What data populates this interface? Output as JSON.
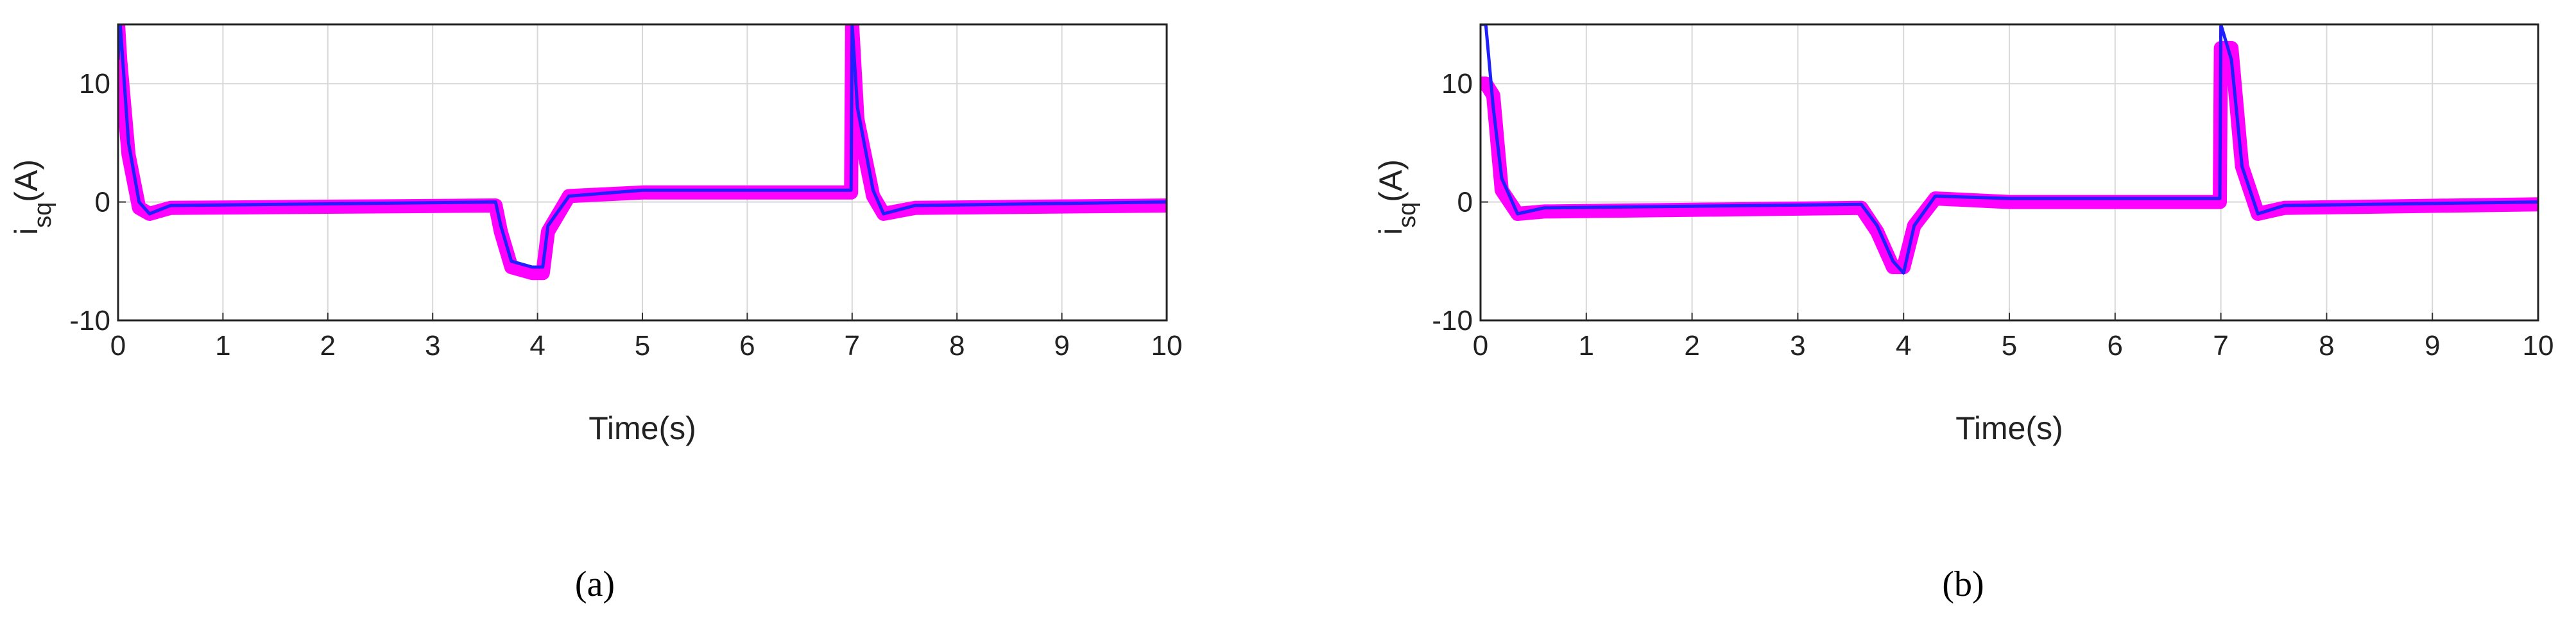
{
  "chart_data": [
    {
      "type": "line",
      "caption": "(a)",
      "x_label": "Time(s)",
      "y_label": "i",
      "y_label_sub": "sq",
      "y_label_unit": "(A)",
      "xlim": [
        0,
        10
      ],
      "ylim": [
        -10,
        15
      ],
      "xticks": [
        0,
        1,
        2,
        3,
        4,
        5,
        6,
        7,
        8,
        9,
        10
      ],
      "yticks": [
        -10,
        0,
        10
      ],
      "grid": true,
      "x": [
        0,
        0.02,
        0.1,
        0.2,
        0.3,
        0.5,
        3.6,
        3.65,
        3.75,
        3.95,
        4.05,
        4.1,
        4.3,
        5,
        6.99,
        7.0,
        7.05,
        7.2,
        7.3,
        7.6,
        10
      ],
      "series": [
        {
          "color": "#ff00ff",
          "values": [
            15,
            12,
            4,
            -0.5,
            -1,
            -0.5,
            -0.3,
            -2.5,
            -5.5,
            -6,
            -6,
            -2.5,
            0.5,
            0.8,
            0.8,
            15,
            7,
            0.5,
            -1,
            -0.5,
            -0.3
          ]
        },
        {
          "color": "#2020ff",
          "values": [
            12,
            15,
            5,
            0,
            -1,
            -0.3,
            0,
            -2,
            -5,
            -5.5,
            -5.5,
            -2,
            0.5,
            1,
            1,
            15,
            8,
            1,
            -1,
            -0.3,
            0
          ]
        }
      ]
    },
    {
      "type": "line",
      "caption": "(b)",
      "x_label": "Time(s)",
      "y_label": "i",
      "y_label_sub": "sq",
      "y_label_unit": "(A)",
      "xlim": [
        0,
        10
      ],
      "ylim": [
        -10,
        15
      ],
      "xticks": [
        0,
        1,
        2,
        3,
        4,
        5,
        6,
        7,
        8,
        9,
        10
      ],
      "yticks": [
        -10,
        0,
        10
      ],
      "grid": true,
      "x": [
        0,
        0.05,
        0.12,
        0.2,
        0.35,
        0.6,
        3.6,
        3.75,
        3.9,
        4.0,
        4.1,
        4.3,
        5,
        6.99,
        7.0,
        7.1,
        7.2,
        7.35,
        7.6,
        10
      ],
      "series": [
        {
          "color": "#ff00ff",
          "values": [
            10,
            10,
            9,
            1,
            -1,
            -0.8,
            -0.5,
            -2.5,
            -5.5,
            -5.5,
            -2,
            0.3,
            0,
            0,
            13,
            13,
            3,
            -1,
            -0.5,
            -0.2
          ]
        },
        {
          "color": "#2020ff",
          "values": [
            15,
            15,
            8,
            2,
            -1,
            -0.5,
            -0.2,
            -2,
            -5,
            -6,
            -2,
            0.5,
            0.3,
            0.3,
            15,
            12,
            3,
            -1,
            -0.3,
            0
          ]
        }
      ]
    }
  ]
}
